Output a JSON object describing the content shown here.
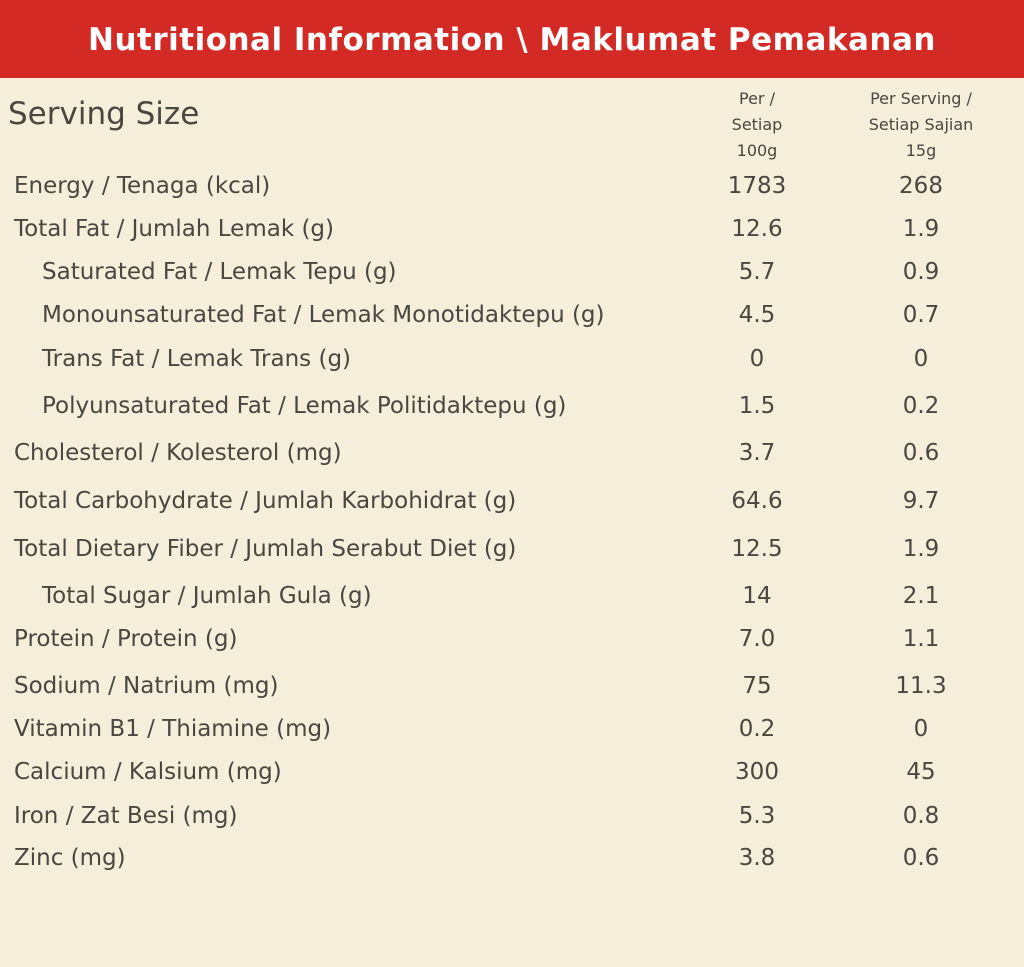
{
  "header": {
    "title": "Nutritional Information \\ Maklumat Pemakanan"
  },
  "table": {
    "serving_label": "Serving Size",
    "column_headers": [
      [
        "Per /",
        "Setiap",
        "100g"
      ],
      [
        "Per Serving /",
        "Setiap Sajian",
        "15g"
      ]
    ],
    "rows": [
      [
        "Energy / Tenaga (kcal)",
        "1783",
        "268"
      ],
      [
        "Total Fat / Jumlah Lemak (g)",
        "12.6",
        "1.9"
      ],
      [
        "Saturated Fat / Lemak Tepu (g)",
        "5.7",
        "0.9"
      ],
      [
        "Monounsaturated Fat / Lemak Monotidaktepu (g)",
        "4.5",
        "0.7"
      ],
      [
        "Trans Fat / Lemak Trans (g)",
        "0",
        "0"
      ],
      [
        "Polyunsaturated Fat / Lemak Politidaktepu (g)",
        "1.5",
        "0.2"
      ],
      [
        "Cholesterol / Kolesterol (mg)",
        "3.7",
        "0.6"
      ],
      [
        "Total Carbohydrate / Jumlah Karbohidrat (g)",
        "64.6",
        "9.7"
      ],
      [
        "Total Dietary Fiber / Jumlah Serabut Diet (g)",
        "12.5",
        "1.9"
      ],
      [
        "Total Sugar / Jumlah Gula (g)",
        "14",
        "2.1"
      ],
      [
        "Protein / Protein (g)",
        "7.0",
        "1.1"
      ],
      [
        "Sodium / Natrium (mg)",
        "75",
        "11.3"
      ],
      [
        "Vitamin B1 / Thiamine (mg)",
        "0.2",
        "0"
      ],
      [
        "Calcium / Kalsium (mg)",
        "300",
        "45"
      ],
      [
        "Iron / Zat Besi (mg)",
        "5.3",
        "0.8"
      ],
      [
        "Zinc (mg)",
        "3.8",
        "0.6"
      ]
    ]
  }
}
